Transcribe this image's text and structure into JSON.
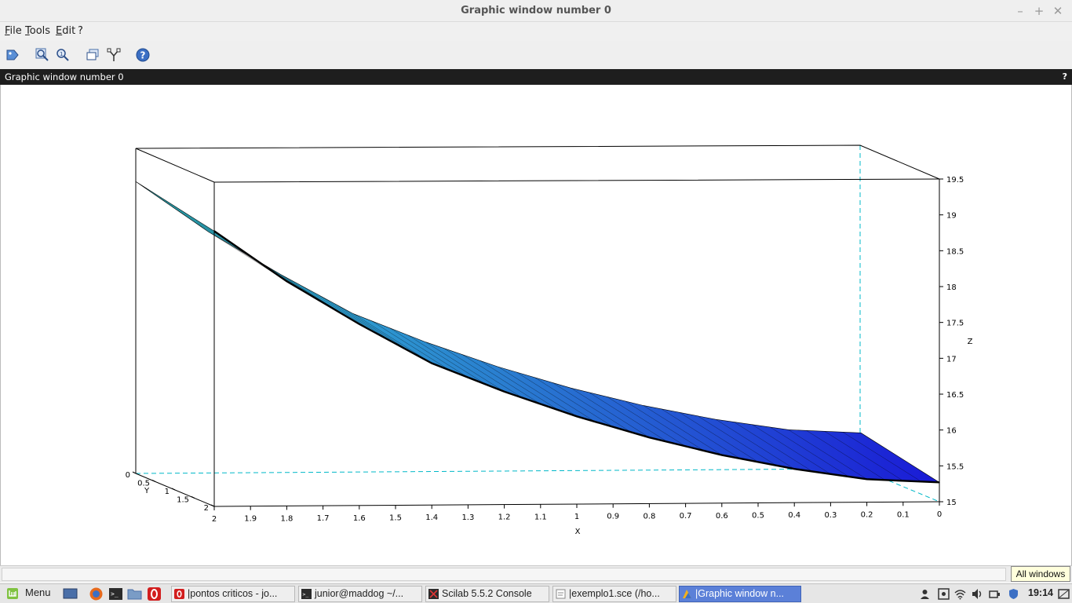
{
  "window": {
    "title": "Graphic window number 0"
  },
  "menubar": {
    "items": [
      "File",
      "Tools",
      "Edit",
      "?"
    ]
  },
  "toolbar": {
    "icons": [
      "datatip-icon",
      "zoom-icon",
      "zoom-reset-icon",
      "rotate-icon",
      "datatips-icon",
      "help-icon"
    ]
  },
  "panel": {
    "title": "Graphic window number 0",
    "help": "?"
  },
  "chart_data": {
    "type": "surface3d",
    "xlabel": "X",
    "ylabel": "Y",
    "zlabel": "Z",
    "x_ticks": [
      "2",
      "1.9",
      "1.8",
      "1.7",
      "1.6",
      "1.5",
      "1.4",
      "1.3",
      "1.2",
      "1.1",
      "1",
      "0.9",
      "0.8",
      "0.7",
      "0.6",
      "0.5",
      "0.4",
      "0.3",
      "0.2",
      "0.1",
      "0"
    ],
    "y_ticks": [
      "0",
      "0.5",
      "1",
      "1.5",
      "2"
    ],
    "z_ticks": [
      "19.5",
      "19",
      "18.5",
      "18",
      "17.5",
      "17",
      "16.5",
      "16",
      "15.5",
      "15"
    ],
    "xlim": [
      0,
      2
    ],
    "ylim": [
      0,
      2
    ],
    "zlim": [
      15,
      19.5
    ],
    "curve": {
      "x": [
        2,
        1.8,
        1.6,
        1.4,
        1.2,
        1.0,
        0.8,
        0.6,
        0.4,
        0.2,
        0
      ],
      "z": [
        19.0,
        18.3,
        17.7,
        17.15,
        16.75,
        16.4,
        16.1,
        15.85,
        15.65,
        15.5,
        15.45
      ]
    },
    "colors": {
      "high": "#33c4cc",
      "low": "#1a1ad6",
      "box": "#000000",
      "hidden_edge": "#00b8c8"
    }
  },
  "statusbar": {
    "tooltip": "All windows"
  },
  "taskbar": {
    "menu_label": "Menu",
    "tasks": [
      "|pontos criticos - jo...",
      "junior@maddog ~/...",
      "Scilab 5.5.2 Console",
      "|exemplo1.sce (/ho...",
      "|Graphic window n..."
    ],
    "clock": "19:14"
  }
}
